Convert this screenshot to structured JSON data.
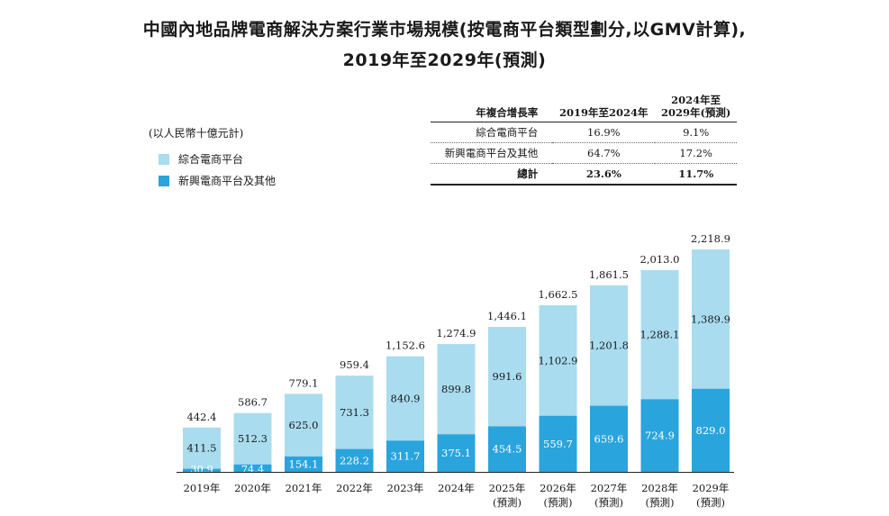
{
  "title_line1": "中國內地品牌電商解決方案行業市場規模(按電商平台類型劃分,以GMV計算),",
  "title_line2": "2019年至2029年(預測)",
  "unit_label": "(以人民幣十億元計)",
  "legend": [
    {
      "label": "綜合電商平台",
      "color": "#a9dcef"
    },
    {
      "label": "新興電商平台及其他",
      "color": "#2aa4dc"
    }
  ],
  "cagr_table": {
    "header_label": "年複合增長率",
    "header_col1": "2019年至2024年",
    "header_col2_line1": "2024年至",
    "header_col2_line2": "2029年(預測)",
    "rows": [
      {
        "label": "綜合電商平台",
        "v1": "16.9%",
        "v2": "9.1%"
      },
      {
        "label": "新興電商平台及其他",
        "v1": "64.7%",
        "v2": "17.2%"
      }
    ],
    "total": {
      "label": "總計",
      "v1": "23.6%",
      "v2": "11.7%"
    }
  },
  "chart_data": {
    "type": "bar",
    "stacked": true,
    "categories": [
      "2019年",
      "2020年",
      "2021年",
      "2022年",
      "2023年",
      "2024年",
      "2025年",
      "2026年",
      "2027年",
      "2028年",
      "2029年"
    ],
    "category_sublabels": [
      "",
      "",
      "",
      "",
      "",
      "",
      "(預測)",
      "(預測)",
      "(預測)",
      "(預測)",
      "(預測)"
    ],
    "series": [
      {
        "name": "新興電商平台及其他",
        "values": [
          30.9,
          74.4,
          154.1,
          228.2,
          311.7,
          375.1,
          454.5,
          559.7,
          659.6,
          724.9,
          829.0
        ],
        "labels": [
          "30.9",
          "74.4",
          "154.1",
          "228.2",
          "311.7",
          "375.1",
          "454.5",
          "559.7",
          "659.6",
          "724.9",
          "829.0"
        ],
        "color": "#2aa4dc"
      },
      {
        "name": "綜合電商平台",
        "values": [
          411.5,
          512.3,
          625.0,
          731.3,
          840.9,
          899.8,
          991.6,
          1102.9,
          1201.8,
          1288.1,
          1389.9
        ],
        "labels": [
          "411.5",
          "512.3",
          "625.0",
          "731.3",
          "840.9",
          "899.8",
          "991.6",
          "1,102.9",
          "1,201.8",
          "1,288.1",
          "1,389.9"
        ],
        "color": "#a9dcef"
      }
    ],
    "totals": [
      442.4,
      586.7,
      779.1,
      959.4,
      1152.6,
      1274.9,
      1446.1,
      1662.5,
      1861.5,
      2013.0,
      2218.9
    ],
    "total_labels": [
      "442.4",
      "586.7",
      "779.1",
      "959.4",
      "1,152.6",
      "1,274.9",
      "1,446.1",
      "1,662.5",
      "1,861.5",
      "2,013.0",
      "2,218.9"
    ],
    "ylim": [
      0,
      2218.9
    ],
    "grid": false
  }
}
